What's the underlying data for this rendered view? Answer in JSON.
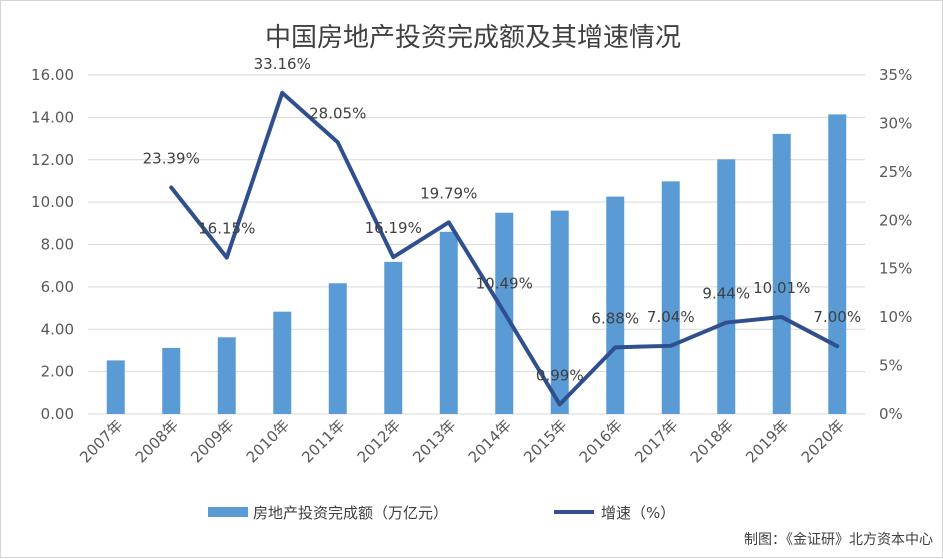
{
  "chart_data": {
    "type": "bar",
    "title": "中国房地产投资完成额及其增速情况",
    "categories": [
      "2007年",
      "2008年",
      "2009年",
      "2010年",
      "2011年",
      "2012年",
      "2013年",
      "2014年",
      "2015年",
      "2016年",
      "2017年",
      "2018年",
      "2019年",
      "2020年"
    ],
    "series": [
      {
        "name": "房地产投资完成额（万亿元）",
        "type": "bar",
        "axis": "left",
        "color": "#5b9bd5",
        "values": [
          2.53,
          3.12,
          3.62,
          4.83,
          6.17,
          7.18,
          8.6,
          9.5,
          9.6,
          10.26,
          10.98,
          12.02,
          13.22,
          14.14
        ]
      },
      {
        "name": "增速（%）",
        "type": "line",
        "axis": "right",
        "color": "#2f4f8f",
        "values": [
          null,
          23.39,
          16.15,
          33.16,
          28.05,
          16.19,
          19.79,
          10.49,
          0.99,
          6.88,
          7.04,
          9.44,
          10.01,
          7.0
        ],
        "labels": [
          "",
          "23.39%",
          "16.15%",
          "33.16%",
          "28.05%",
          "16.19%",
          "19.79%",
          "10.49%",
          "0.99%",
          "6.88%",
          "7.04%",
          "9.44%",
          "10.01%",
          "7.00%"
        ]
      }
    ],
    "y_left": {
      "ylim": [
        0,
        16
      ],
      "ticks": [
        "0.00",
        "2.00",
        "4.00",
        "6.00",
        "8.00",
        "10.00",
        "12.00",
        "14.00",
        "16.00"
      ]
    },
    "y_right": {
      "ylim": [
        0,
        35
      ],
      "ticks": [
        "0%",
        "5%",
        "10%",
        "15%",
        "20%",
        "25%",
        "30%",
        "35%"
      ]
    },
    "grid": true,
    "legend_position": "bottom"
  },
  "credit": "制图：《金证研》北方资本中心"
}
